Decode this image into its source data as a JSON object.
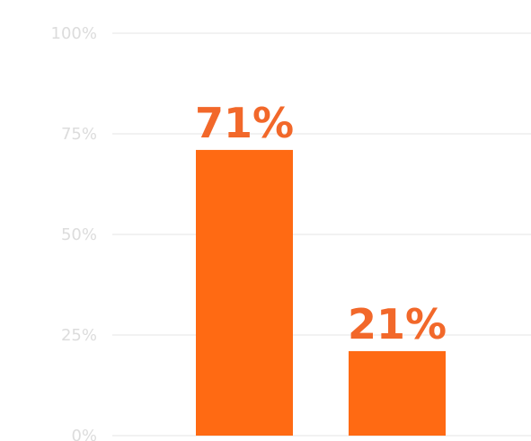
{
  "chart_data": {
    "type": "bar",
    "title": "",
    "xlabel": "",
    "ylabel": "",
    "categories": [
      "",
      ""
    ],
    "values": [
      71,
      21
    ],
    "data_labels": [
      "71%",
      "21%"
    ],
    "ylim": [
      0,
      100
    ],
    "yticks": [
      0,
      25,
      50,
      75,
      100
    ],
    "ytick_labels": [
      "0%",
      "25%",
      "50%",
      "75%",
      "100%"
    ],
    "grid": true,
    "legend": "none"
  },
  "colors": {
    "bar": "#ff6a13",
    "label": "#f2682a",
    "grid": "#eeeeee",
    "tick": "#dcdcdc"
  }
}
